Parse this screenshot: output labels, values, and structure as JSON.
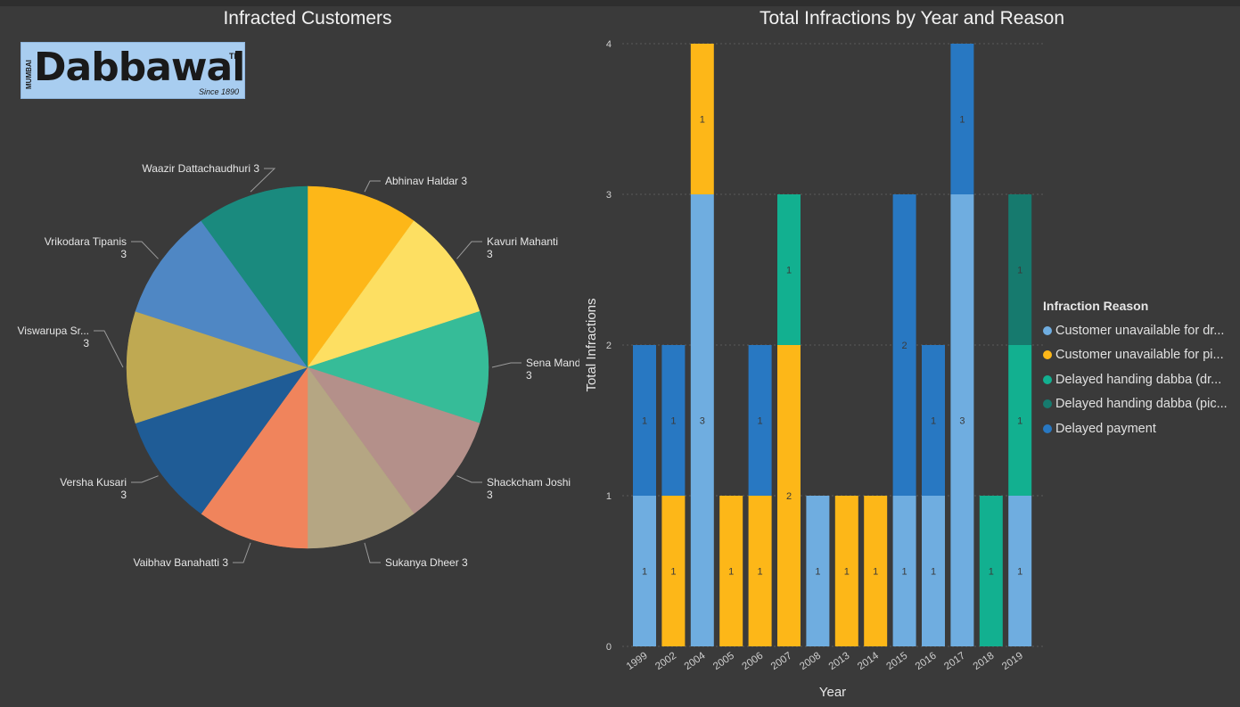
{
  "left": {
    "title": "Infracted Customers",
    "logo": {
      "word": "Dabbawala",
      "side_text": "MUMBAI",
      "tm": "TM",
      "since": "Since 1890"
    }
  },
  "right": {
    "title": "Total Infractions by Year and Reason",
    "legend_title": "Infraction Reason"
  },
  "colors": {
    "background": "#3a3a3a",
    "reason_colors": [
      "#6fade0",
      "#fdb718",
      "#12b090",
      "#167a6e",
      "#2878c2"
    ]
  },
  "chart_data": [
    {
      "type": "pie",
      "title": "Infracted Customers",
      "slices": [
        {
          "name": "Abhinav Haldar",
          "value": 3,
          "label": "Abhinav Haldar 3",
          "color": "#fdb718"
        },
        {
          "name": "Kavuri Mahanti",
          "value": 3,
          "label": [
            "Kavuri Mahanti",
            "3"
          ],
          "color": "#fddf62"
        },
        {
          "name": "Sena Mandalik",
          "value": 3,
          "label": [
            "Sena Mandalik",
            "3"
          ],
          "color": "#36bc98"
        },
        {
          "name": "Shackcham Joshi",
          "value": 3,
          "label": [
            "Shackcham Joshi",
            "3"
          ],
          "color": "#b4908a"
        },
        {
          "name": "Sukanya Dheer",
          "value": 3,
          "label": "Sukanya Dheer 3",
          "color": "#b5a683"
        },
        {
          "name": "Vaibhav Banahatti",
          "value": 3,
          "label": "Vaibhav Banahatti 3",
          "color": "#f0845c"
        },
        {
          "name": "Versha Kusari",
          "value": 3,
          "label": [
            "Versha Kusari",
            "3"
          ],
          "color": "#1f5c96"
        },
        {
          "name": "Viswarupa Sr...",
          "value": 3,
          "label": [
            "Viswarupa Sr...",
            "3"
          ],
          "color": "#bfa952"
        },
        {
          "name": "Vrikodara Tipanis",
          "value": 3,
          "label": [
            "Vrikodara Tipanis",
            "3"
          ],
          "color": "#4f87c4"
        },
        {
          "name": "Waazir Dattachaudhuri",
          "value": 3,
          "label": "Waazir Dattachaudhuri 3",
          "color": "#1a8a7e"
        }
      ]
    },
    {
      "type": "bar",
      "stacked": true,
      "title": "Total Infractions by Year and Reason",
      "xlabel": "Year",
      "ylabel": "Total Infractions",
      "ylim": [
        0,
        4
      ],
      "yticks": [
        "0",
        "1",
        "2",
        "3",
        "4"
      ],
      "grid": true,
      "legend_position": "right",
      "categories": [
        "1999",
        "2002",
        "2004",
        "2005",
        "2006",
        "2007",
        "2008",
        "2013",
        "2014",
        "2015",
        "2016",
        "2017",
        "2018",
        "2019"
      ],
      "series": [
        {
          "name": "Customer unavailable for dr...",
          "color": "#6fade0",
          "values": [
            1,
            0,
            3,
            0,
            0,
            0,
            1,
            0,
            0,
            1,
            1,
            3,
            0,
            1
          ]
        },
        {
          "name": "Customer unavailable for pi...",
          "color": "#fdb718",
          "values": [
            0,
            1,
            1,
            1,
            1,
            2,
            0,
            1,
            1,
            0,
            0,
            0,
            0,
            0
          ]
        },
        {
          "name": "Delayed handing dabba (dr...",
          "color": "#12b090",
          "values": [
            0,
            0,
            0,
            0,
            0,
            1,
            0,
            0,
            0,
            0,
            0,
            0,
            1,
            1
          ]
        },
        {
          "name": "Delayed handing dabba (pic...",
          "color": "#167a6e",
          "values": [
            0,
            0,
            0,
            0,
            0,
            0,
            0,
            0,
            0,
            0,
            0,
            0,
            0,
            1
          ]
        },
        {
          "name": "Delayed payment",
          "color": "#2878c2",
          "values": [
            1,
            1,
            0,
            0,
            1,
            0,
            0,
            0,
            0,
            2,
            1,
            1,
            0,
            0
          ]
        }
      ]
    }
  ]
}
